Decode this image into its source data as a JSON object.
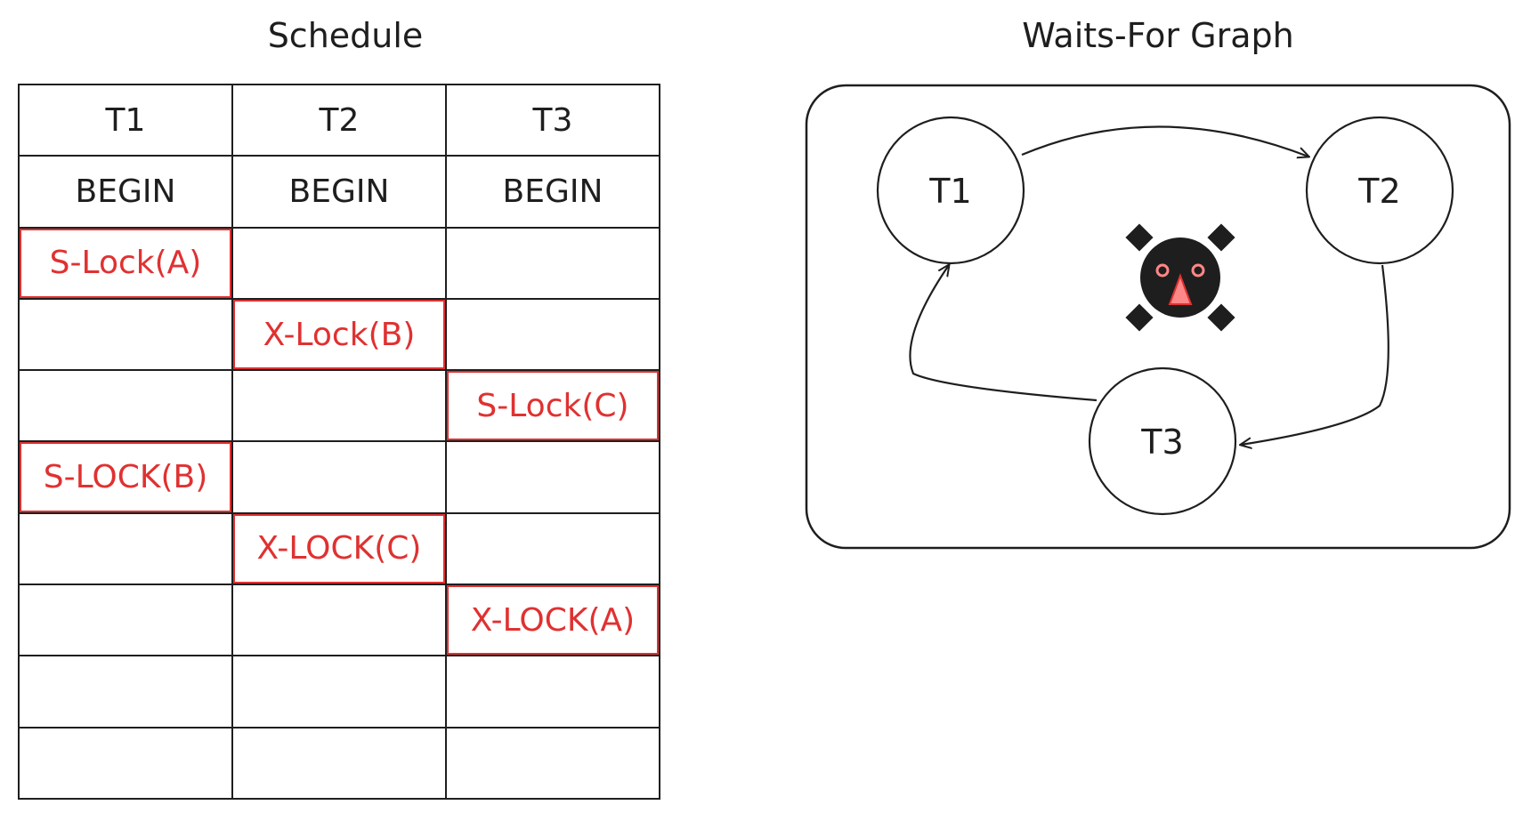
{
  "schedule": {
    "title": "Schedule",
    "headers": [
      "T1",
      "T2",
      "T3"
    ],
    "rows": [
      [
        "BEGIN",
        "BEGIN",
        "BEGIN"
      ],
      [
        "S-Lock(A)",
        "",
        ""
      ],
      [
        "",
        "X-Lock(B)",
        ""
      ],
      [
        "",
        "",
        "S-Lock(C)"
      ],
      [
        "S-LOCK(B)",
        "",
        ""
      ],
      [
        "",
        "X-LOCK(C)",
        ""
      ],
      [
        "",
        "",
        "X-LOCK(A)"
      ],
      [
        "",
        "",
        ""
      ],
      [
        "",
        "",
        ""
      ]
    ],
    "lock_color": "#e03131"
  },
  "graph": {
    "title": "Waits-For Graph",
    "nodes": [
      "T1",
      "T2",
      "T3"
    ],
    "edges": [
      {
        "from": "T1",
        "to": "T2"
      },
      {
        "from": "T2",
        "to": "T3"
      },
      {
        "from": "T3",
        "to": "T1"
      }
    ],
    "deadlock_icon": "skull-crossbones-icon"
  }
}
